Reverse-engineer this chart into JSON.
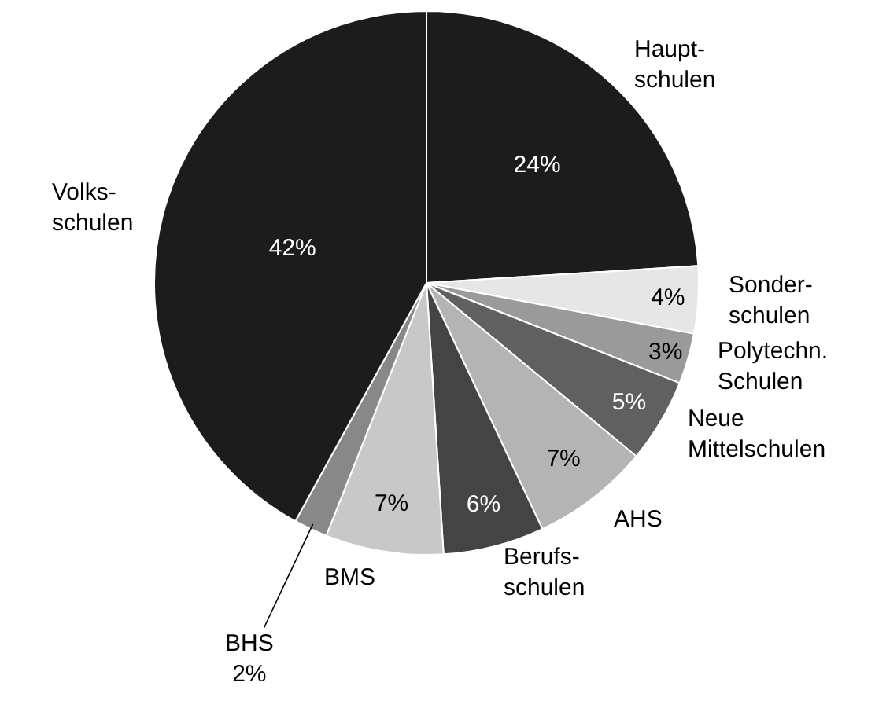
{
  "chart_data": {
    "type": "pie",
    "categories": [
      "Haupt-\nschulen",
      "Sonder-\nschulen",
      "Polytechn.\nSchulen",
      "Neue\nMittelschulen",
      "AHS",
      "Berufs-\nschulen",
      "BMS",
      "BHS",
      "Volks-\nschulen"
    ],
    "values": [
      24,
      4,
      3,
      5,
      7,
      6,
      7,
      2,
      42
    ],
    "value_labels": [
      "24%",
      "4%",
      "3%",
      "5%",
      "7%",
      "6%",
      "7%",
      "2%",
      "42%"
    ],
    "colors": [
      "#1c1c1c",
      "#e6e6e6",
      "#9a9a9a",
      "#606060",
      "#b4b4b4",
      "#444444",
      "#c8c8c8",
      "#888888",
      "#1c1c1c"
    ],
    "legend": false
  }
}
